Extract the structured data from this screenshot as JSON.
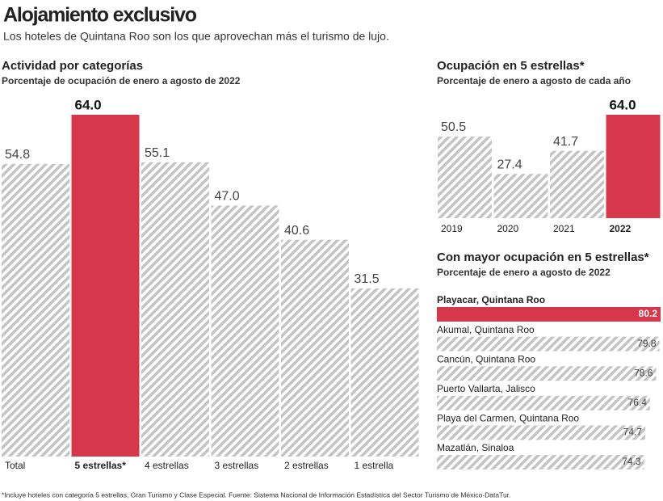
{
  "header": {
    "title": "Alojamiento exclusivo",
    "subtitle": "Los hoteles de Quintana Roo son los que aprovechan más el turismo de lujo."
  },
  "chart_data": [
    {
      "type": "bar",
      "title": "Actividad por categorías",
      "subtitle": "Porcentaje de ocupación de enero a agosto de 2022",
      "categories": [
        "Total",
        "5 estrellas*",
        "4 estrellas",
        "3 estrellas",
        "2 estrellas",
        "1 estrella"
      ],
      "values": [
        54.8,
        64.0,
        55.1,
        47.0,
        40.6,
        31.5
      ],
      "value_labels": [
        "54.8",
        "64.0",
        "55.1",
        "47.0",
        "40.6",
        "31.5"
      ],
      "colors": [
        "#c4c4c4",
        "#d7374a",
        "#c4c4c4",
        "#c4c4c4",
        "#c4c4c4",
        "#c4c4c4"
      ],
      "highlight_color": "#d7374a"
    },
    {
      "type": "bar",
      "title": "Ocupación en 5 estrellas*",
      "subtitle": "Porcentaje de enero a agosto de cada año",
      "categories": [
        "2019",
        "2020",
        "2021",
        "2022"
      ],
      "values": [
        50.5,
        27.4,
        41.7,
        64.0
      ],
      "value_labels": [
        "50.5",
        "27.4",
        "41.7",
        "64.0"
      ],
      "colors": [
        "#c4c4c4",
        "#c4c4c4",
        "#c4c4c4",
        "#d7374a"
      ],
      "highlight_color": "#d7374a"
    },
    {
      "type": "hbar",
      "title": "Con mayor ocupación en 5 estrellas*",
      "subtitle": "Porcentaje de enero a agosto de 2022",
      "categories": [
        "Playacar, Quintana Roo",
        "Akumal, Quintana Roo",
        "Cancún, Quintana Roo",
        "Puerto Vallarta, Jalisco",
        "Playa del Carmen, Quintana Roo",
        "Mazatlán, Sinaloa"
      ],
      "values": [
        80.2,
        79.8,
        78.6,
        76.4,
        74.7,
        74.3
      ],
      "colors": [
        "#d7374a",
        "#c4c4c4",
        "#c4c4c4",
        "#c4c4c4",
        "#c4c4c4",
        "#c4c4c4"
      ],
      "highlight_color": "#d7374a"
    }
  ],
  "footnote": "*Incluye hoteles con categoría 5 estrellas, Gran Turismo y Clase Especial. Fuente: Sistema Nacional de Información Estadística del Sector Turismo de México-DataTur."
}
